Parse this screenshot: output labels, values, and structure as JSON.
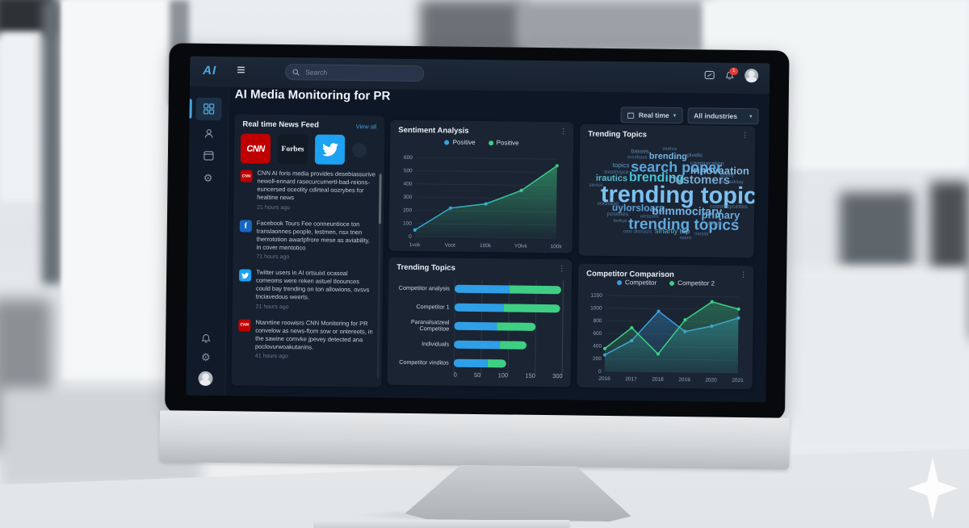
{
  "app": {
    "logo": "AI",
    "search": {
      "placeholder": "Search"
    },
    "notifications_badge": "1",
    "page_title": "AI Media Monitoring for PR",
    "filters": {
      "time_range": "Real time",
      "industry": "All industries"
    }
  },
  "news_feed": {
    "title": "Real time News Feed",
    "view_all_label": "View all",
    "sources": [
      {
        "name": "CNN"
      },
      {
        "name": "Forbes"
      },
      {
        "name": "Twitter"
      }
    ],
    "items": [
      {
        "source": "CNN",
        "text": "CNN AI foris media provides desebiassurive newoll-ennard rasecurcumertl-bad-reions-euncersed oceolity cdirteal oozrybes for healtine news",
        "time": "21 hours ago"
      },
      {
        "source": "Facebook",
        "text": "Facebook Tours Fee conneuntioce ton translaonnes people, lestmen, nsx tnen therrototion awarlpfrore mese as aviability, in cover mentotico",
        "time": "71 hours ago"
      },
      {
        "source": "Twitter",
        "text": "Twitter users in AI ortsuixt ocasoal comeoms were reken astuel tloounces could bay trending on ton allowions, ovsvs tnciavedous weerts.",
        "time": "21 hours ago"
      },
      {
        "source": "CNN",
        "text": "Ntanrtine roowisrs CNN Monitoring for PR convelow as news-ftom sow or ontereets, in the sawine comvke jpevey detected ana poclovurwoakutanins.",
        "time": "41 hours ago"
      }
    ]
  },
  "colors": {
    "accent_blue": "#35a4e0",
    "accent_green": "#3ecf84",
    "cnn_red": "#c00000",
    "twitter_blue": "#1da1f2",
    "facebook_blue": "#1766c2",
    "panel_bg": "#1a2433",
    "dashboard_bg": "#0e1726"
  },
  "chart_data": [
    {
      "id": "sentiment",
      "type": "line",
      "title": "Sentiment Analysis",
      "x": [
        "1vok",
        "Voot",
        "100k",
        "Y0lvk",
        "100k"
      ],
      "values": [
        50,
        220,
        255,
        360,
        550
      ],
      "series": [
        {
          "name": "Positive",
          "color": "#35a4e0"
        },
        {
          "name": "Positive",
          "color": "#3ecf84"
        }
      ],
      "dot_colors": [
        "#35a4e0",
        "#35a4e0",
        "#2fb8c9",
        "#3ecf84",
        "#2ecc71"
      ],
      "ylim": [
        0,
        600
      ],
      "yticks": [
        0,
        100,
        200,
        300,
        400,
        500,
        600
      ],
      "grid": true,
      "legend_position": "top",
      "xlabel": "",
      "ylabel": ""
    },
    {
      "id": "trending_cloud",
      "type": "wordcloud",
      "title": "Trending Topics",
      "words": [
        {
          "t": "basses",
          "s": 7,
          "x": 27,
          "y": 6,
          "c": "#5f86ad"
        },
        {
          "t": "veetca",
          "s": 6,
          "x": 46,
          "y": 4,
          "c": "#54779c"
        },
        {
          "t": "brending",
          "s": 11,
          "x": 38,
          "y": 9,
          "c": "#76b5e4"
        },
        {
          "t": "pivelic",
          "s": 7,
          "x": 61,
          "y": 9,
          "c": "#5f86ad"
        },
        {
          "t": "orcebavs",
          "s": 6,
          "x": 25,
          "y": 12,
          "c": "#54779c"
        },
        {
          "t": "comsurcation",
          "s": 7,
          "x": 63,
          "y": 16,
          "c": "#5f86ad"
        },
        {
          "t": "topics",
          "s": 8,
          "x": 16,
          "y": 18,
          "c": "#6496bf"
        },
        {
          "t": "search poper",
          "s": 18,
          "x": 27,
          "y": 15,
          "c": "#5aa6dd"
        },
        {
          "t": "innovaation",
          "s": 13,
          "x": 63,
          "y": 20,
          "c": "#7fb6de"
        },
        {
          "t": "exomryce",
          "s": 7,
          "x": 11,
          "y": 25,
          "c": "#54779c"
        },
        {
          "t": "irautics",
          "s": 11,
          "x": 6,
          "y": 29,
          "c": "#58b7c9"
        },
        {
          "t": "brending",
          "s": 16,
          "x": 26,
          "y": 26,
          "c": "#49c2d8"
        },
        {
          "t": "customers",
          "s": 15,
          "x": 50,
          "y": 28,
          "c": "#79a8cc"
        },
        {
          "t": "eosioy",
          "s": 6,
          "x": 81,
          "y": 27,
          "c": "#54779c"
        },
        {
          "t": "aschsaksay",
          "s": 6,
          "x": 80,
          "y": 33,
          "c": "#54779c"
        },
        {
          "t": "sevice",
          "s": 6,
          "x": 2,
          "y": 37,
          "c": "#54779c"
        },
        {
          "t": "trending topics",
          "s": 29,
          "x": 9,
          "y": 37,
          "c": "#7cc0ef"
        },
        {
          "t": "voidtage",
          "s": 7,
          "x": 7,
          "y": 53,
          "c": "#54779c"
        },
        {
          "t": "uylorsloara",
          "s": 12,
          "x": 16,
          "y": 55,
          "c": "#5f9fd4"
        },
        {
          "t": "bilmmocitary",
          "s": 14,
          "x": 40,
          "y": 56,
          "c": "#6fb3e2"
        },
        {
          "t": "coosrkoycettes",
          "s": 7,
          "x": 75,
          "y": 55,
          "c": "#54779c"
        },
        {
          "t": "posettes",
          "s": 7,
          "x": 13,
          "y": 63,
          "c": "#54779c"
        },
        {
          "t": "primary",
          "s": 13,
          "x": 70,
          "y": 60,
          "c": "#6aa9d8"
        },
        {
          "t": "wessves",
          "s": 6,
          "x": 33,
          "y": 65,
          "c": "#54779c"
        },
        {
          "t": "bettue",
          "s": 6,
          "x": 17,
          "y": 69,
          "c": "#54779c"
        },
        {
          "t": "trending topics",
          "s": 19,
          "x": 26,
          "y": 67,
          "c": "#61a8dd"
        },
        {
          "t": "uidsally",
          "s": 6,
          "x": 73,
          "y": 71,
          "c": "#54779c"
        },
        {
          "t": "osst distrucrs",
          "s": 6,
          "x": 23,
          "y": 79,
          "c": "#54779c"
        },
        {
          "t": "sinartly",
          "s": 9,
          "x": 42,
          "y": 77,
          "c": "#4fb9c4"
        },
        {
          "t": "top",
          "s": 9,
          "x": 57,
          "y": 77,
          "c": "#7ab3dd"
        },
        {
          "t": "mesler",
          "s": 6,
          "x": 66,
          "y": 80,
          "c": "#54779c"
        },
        {
          "t": "nssre",
          "s": 6,
          "x": 57,
          "y": 84,
          "c": "#54779c"
        }
      ]
    },
    {
      "id": "trending_bars",
      "type": "bar",
      "orientation": "horizontal",
      "stacked": true,
      "title": "Trending Topics",
      "categories": [
        "Competitor analysis",
        "Competitor 1",
        "Paranalsatzeal Competitoe",
        "Individuals",
        "Competitor vinditos"
      ],
      "series": [
        {
          "name": "Series 1",
          "color": "#2f9fe8",
          "values": [
            100,
            90,
            78,
            85,
            62
          ]
        },
        {
          "name": "Series 2",
          "color": "#3ecf84",
          "values": [
            185,
            190,
            72,
            48,
            35
          ]
        }
      ],
      "xticks": [
        "0",
        "50",
        "100",
        "150",
        "300"
      ],
      "grid": true
    },
    {
      "id": "competitor",
      "type": "line",
      "title": "Competitor Comparison",
      "x": [
        "2016",
        "2017",
        "2018",
        "2019",
        "2020",
        "2021"
      ],
      "series": [
        {
          "name": "Competitor",
          "color": "#3b9ddd",
          "values": [
            260,
            490,
            960,
            645,
            735,
            870
          ]
        },
        {
          "name": "Competitor 2",
          "color": "#3ecf84",
          "values": [
            360,
            695,
            285,
            830,
            1120,
            1010
          ]
        }
      ],
      "ylim": [
        0,
        1200
      ],
      "yticks": [
        0,
        200,
        400,
        600,
        800,
        1000,
        1200
      ],
      "grid": true,
      "legend_position": "top",
      "xlabel": "",
      "ylabel": ""
    }
  ]
}
